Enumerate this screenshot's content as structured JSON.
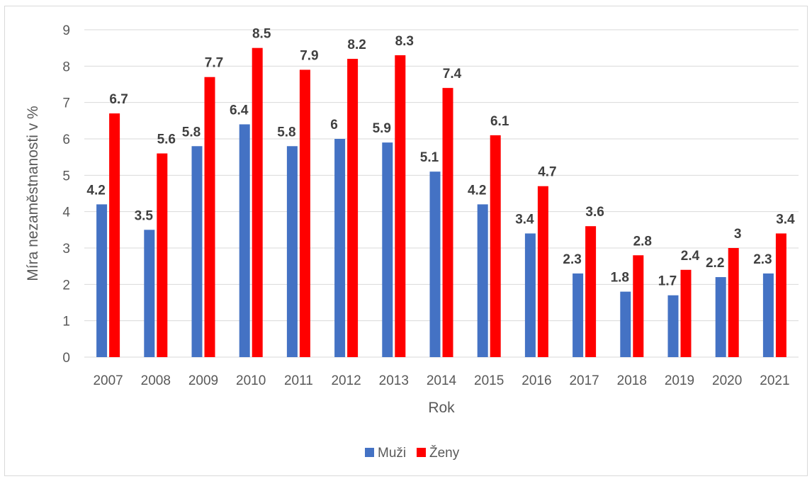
{
  "chart_data": {
    "type": "bar",
    "categories": [
      "2007",
      "2008",
      "2009",
      "2010",
      "2011",
      "2012",
      "2013",
      "2014",
      "2015",
      "2016",
      "2017",
      "2018",
      "2019",
      "2020",
      "2021"
    ],
    "series": [
      {
        "name": "Muži",
        "color": "#4472C4",
        "values": [
          4.2,
          3.5,
          5.8,
          6.4,
          5.8,
          6,
          5.9,
          5.1,
          4.2,
          3.4,
          2.3,
          1.8,
          1.7,
          2.2,
          2.3
        ]
      },
      {
        "name": "Ženy",
        "color": "#FF0000",
        "values": [
          6.7,
          5.6,
          7.7,
          8.5,
          7.9,
          8.2,
          8.3,
          7.4,
          6.1,
          4.7,
          3.6,
          2.8,
          2.4,
          3,
          3.4
        ]
      }
    ],
    "title": "",
    "xlabel": "Rok",
    "ylabel": "Míra nezaměstnanosti v %",
    "ylim": [
      0,
      9
    ],
    "yticks": [
      0,
      1,
      2,
      3,
      4,
      5,
      6,
      7,
      8,
      9
    ],
    "grid": true,
    "legend_position": "bottom"
  }
}
